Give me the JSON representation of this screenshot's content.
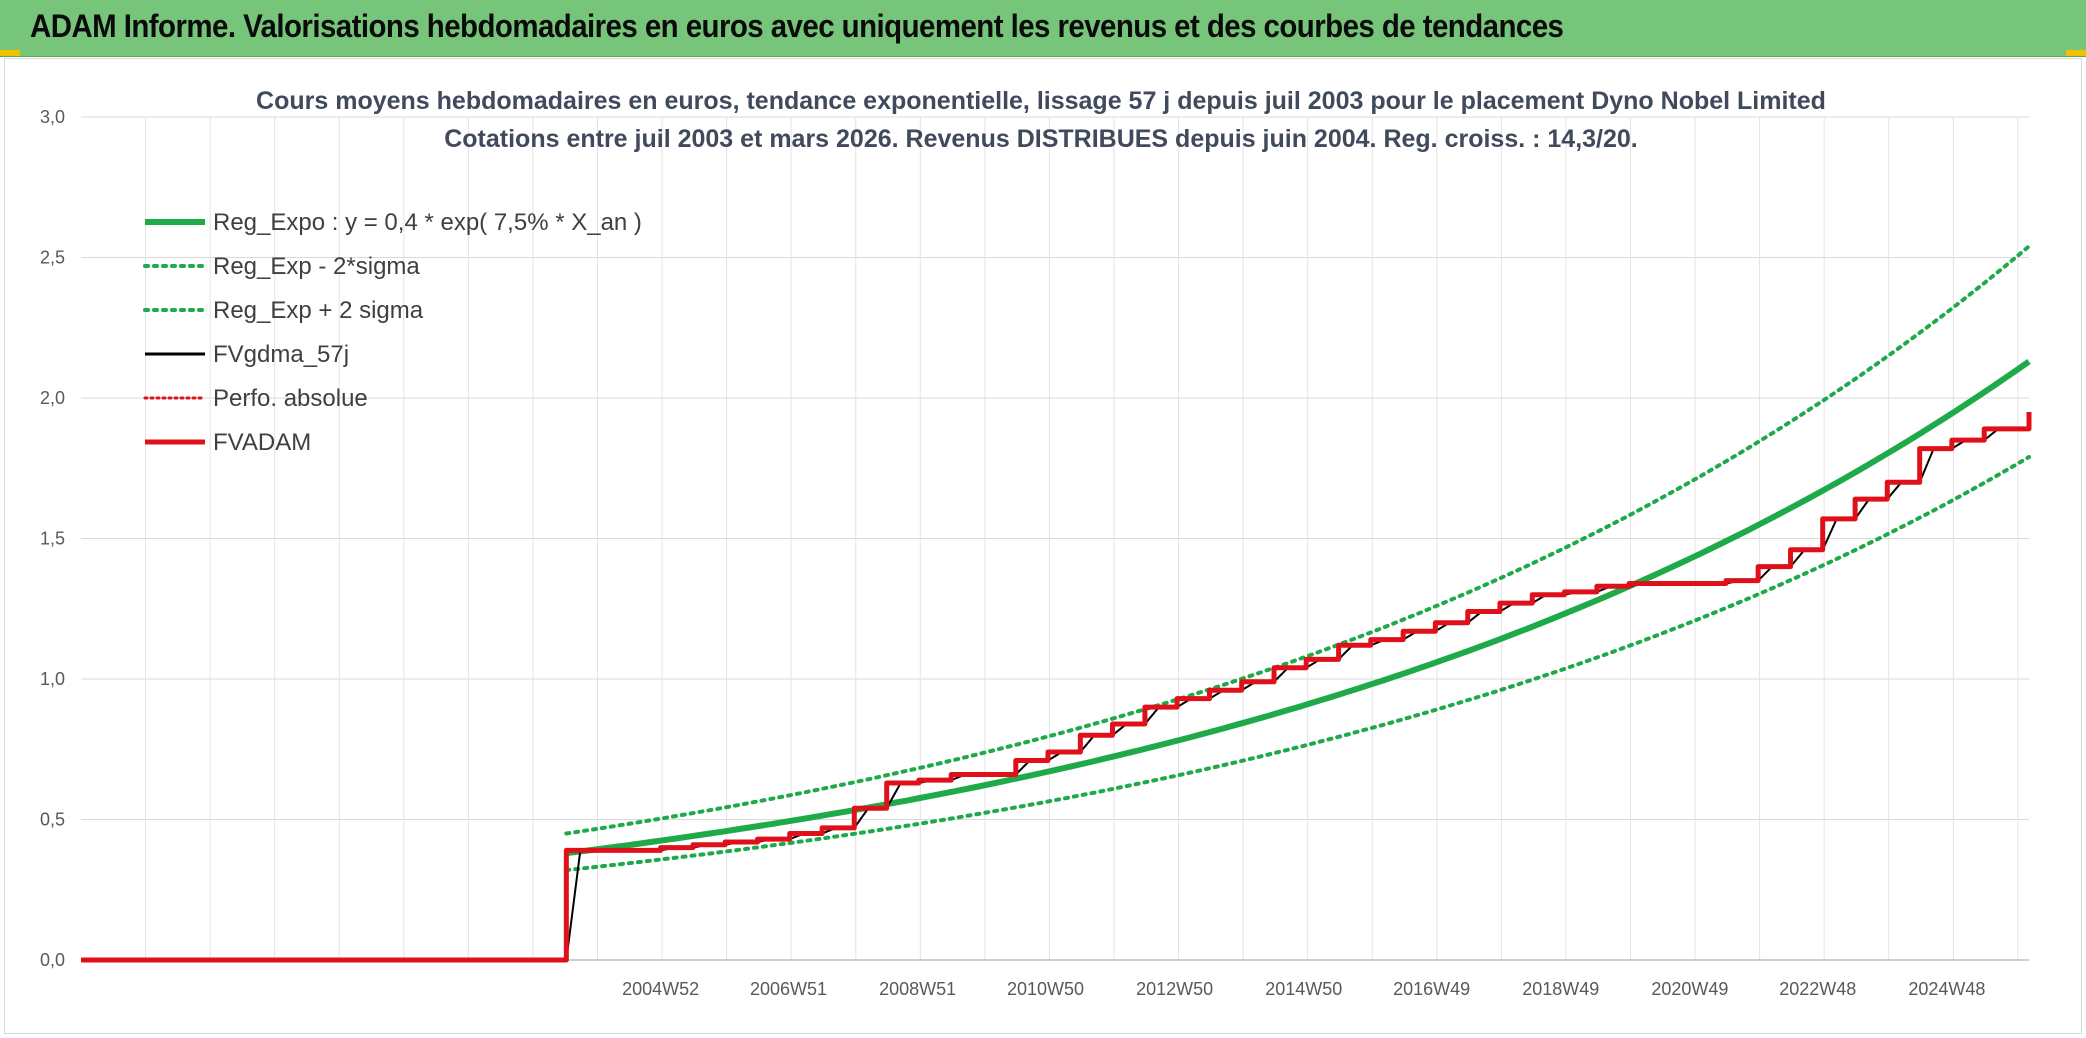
{
  "header": {
    "title": "ADAM Informe. Valorisations hebdomadaires en euros avec uniquement les revenus et des courbes de tendances"
  },
  "chart_data": {
    "type": "line",
    "title_line1": "Cours moyens hebdomadaires en euros, tendance exponentielle, lissage 57 j depuis juil 2003 pour le placement Dyno Nobel Limited",
    "title_line2": "Cotations entre juil 2003 et mars 2026. Revenus DISTRIBUES depuis juin 2004. Reg. croiss. : 14,3/20.",
    "y_ticks": [
      "0,0",
      "0,5",
      "1,0",
      "1,5",
      "2,0",
      "2,5",
      "3,0"
    ],
    "ylim": [
      0,
      3
    ],
    "x_ticks": [
      "2004W52",
      "2006W51",
      "2008W51",
      "2010W50",
      "2012W50",
      "2014W50",
      "2016W49",
      "2018W49",
      "2020W49",
      "2022W48",
      "2024W48"
    ],
    "grid": true,
    "legend_position": "top-left",
    "colors": {
      "reg": "#1faa4a",
      "band": "#1faa4a",
      "fvgdma": "#000000",
      "perfo": "#e0101a",
      "fvadam": "#e0101a"
    },
    "series": [
      {
        "name": "Reg_Expo : y = 0,4 * exp( 7,5% *  X_an )",
        "style": "solid-thick-green",
        "x": [
          "2003W28",
          "2026W10"
        ],
        "values": [
          0.38,
          2.13
        ]
      },
      {
        "name": "Reg_Exp - 2*sigma",
        "style": "dotted-green",
        "x": [
          "2003W28",
          "2026W10"
        ],
        "values": [
          0.32,
          1.79
        ]
      },
      {
        "name": "Reg_Exp + 2 sigma",
        "style": "dotted-green",
        "x": [
          "2003W28",
          "2026W10"
        ],
        "values": [
          0.45,
          2.54
        ]
      },
      {
        "name": "FVgdma_57j",
        "style": "solid-black"
      },
      {
        "name": "Perfo. absolue",
        "style": "dotted-red"
      },
      {
        "name": "FVADAM",
        "style": "solid-thick-red",
        "x": [
          "1996W01",
          "2003W27",
          "2003W28",
          "2004W52",
          "2005W26",
          "2005W52",
          "2006W26",
          "2006W52",
          "2007W26",
          "2007W52",
          "2008W26",
          "2008W52",
          "2009W26",
          "2009W52",
          "2010W26",
          "2010W52",
          "2011W26",
          "2011W52",
          "2012W26",
          "2012W52",
          "2013W26",
          "2013W52",
          "2014W26",
          "2014W52",
          "2015W26",
          "2015W52",
          "2016W26",
          "2016W52",
          "2017W26",
          "2017W52",
          "2018W26",
          "2018W52",
          "2019W26",
          "2019W52",
          "2020W26",
          "2020W52",
          "2021W26",
          "2021W52",
          "2022W26",
          "2022W52",
          "2023W26",
          "2023W52",
          "2024W26",
          "2024W52",
          "2025W26",
          "2026W10"
        ],
        "values": [
          0.0,
          0.0,
          0.39,
          0.4,
          0.41,
          0.42,
          0.43,
          0.45,
          0.47,
          0.54,
          0.63,
          0.64,
          0.66,
          0.66,
          0.71,
          0.74,
          0.8,
          0.84,
          0.9,
          0.93,
          0.96,
          0.99,
          1.04,
          1.07,
          1.12,
          1.14,
          1.17,
          1.2,
          1.24,
          1.27,
          1.3,
          1.31,
          1.33,
          1.34,
          1.34,
          1.34,
          1.35,
          1.4,
          1.46,
          1.57,
          1.64,
          1.7,
          1.82,
          1.85,
          1.89,
          1.95
        ]
      }
    ]
  }
}
